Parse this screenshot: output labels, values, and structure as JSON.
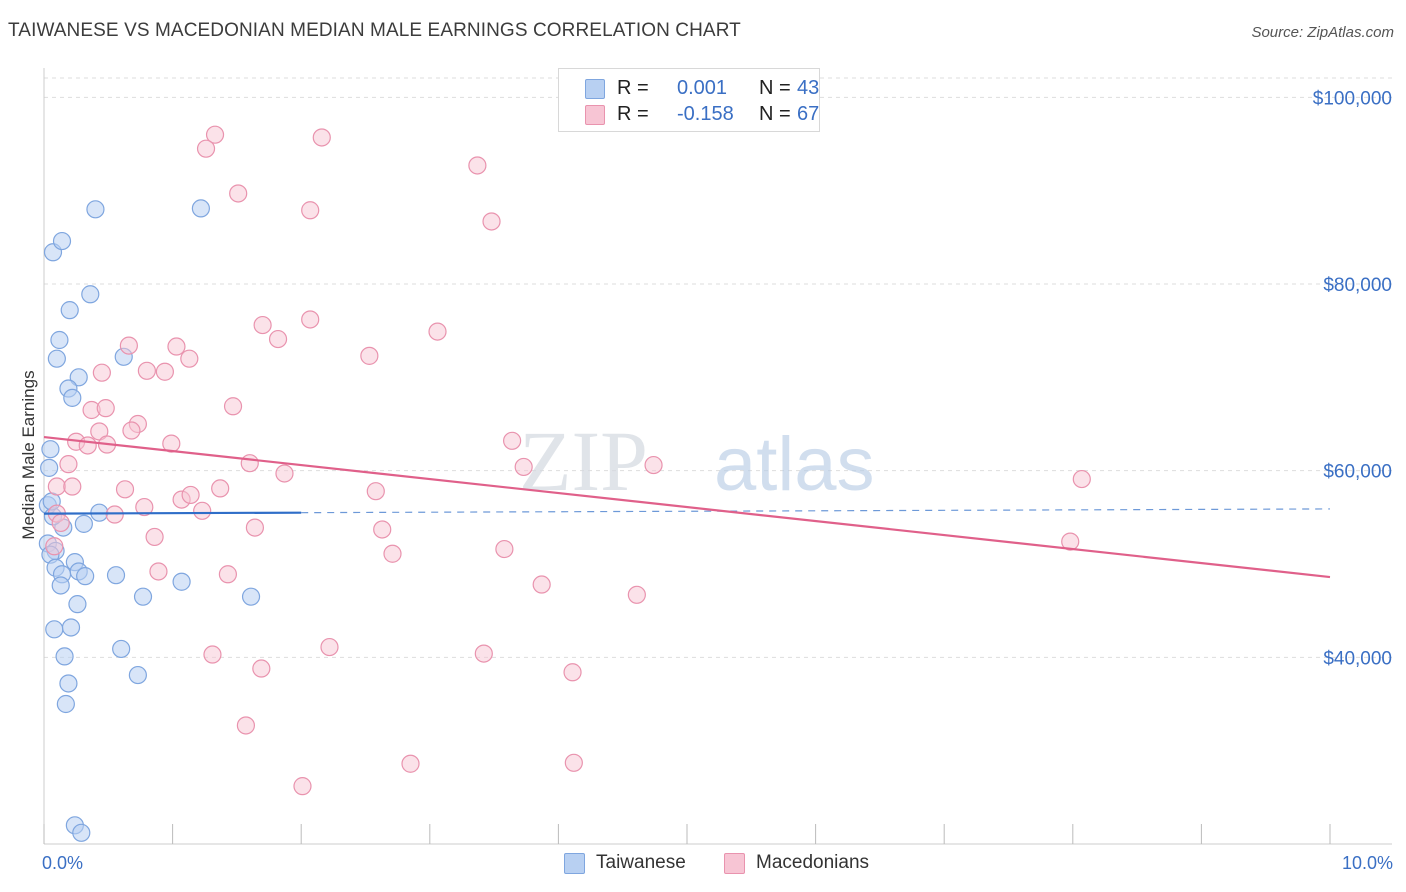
{
  "title": "TAIWANESE VS MACEDONIAN MEDIAN MALE EARNINGS CORRELATION CHART",
  "source": "Source: ZipAtlas.com",
  "watermark": {
    "zip": "ZIP",
    "atlas": "atlas"
  },
  "legend": {
    "series": [
      {
        "name": "Taiwanese",
        "r_label": "R =",
        "r_value": "0.001",
        "n_label": "N =",
        "n_value": "43"
      },
      {
        "name": "Macedonians",
        "r_label": "R =",
        "r_value": "-0.158",
        "n_label": "N =",
        "n_value": "67"
      }
    ]
  },
  "colors": {
    "taiwanese_fill": "#b8d0f2",
    "taiwanese_stroke": "#7fa6df",
    "taiwanese_line": "#2f6ec8",
    "macedonian_fill": "#f7c5d4",
    "macedonian_stroke": "#e993ae",
    "macedonian_line": "#e0608a",
    "axis_label": "#3a6fc4",
    "grid": "#dddddd"
  },
  "chart_data": {
    "type": "scatter",
    "title": "TAIWANESE VS MACEDONIAN MEDIAN MALE EARNINGS CORRELATION CHART",
    "xlabel": "",
    "ylabel": "Median Male Earnings",
    "xlim": [
      0,
      10
    ],
    "ylim": [
      20000,
      104000
    ],
    "x_tick_labels": [
      "0.0%",
      "10.0%"
    ],
    "y_ticks": [
      40000,
      60000,
      80000,
      100000
    ],
    "y_tick_labels": [
      "$40,000",
      "$60,000",
      "$80,000",
      "$100,000"
    ],
    "grid": true,
    "series": [
      {
        "name": "Taiwanese",
        "trend": {
          "x": [
            0.0,
            2.0
          ],
          "y": [
            55400,
            55500
          ],
          "dashed_extension_to_x": 10.0
        },
        "points": [
          [
            0.07,
            83400
          ],
          [
            0.14,
            84600
          ],
          [
            0.4,
            88000
          ],
          [
            0.2,
            77200
          ],
          [
            0.36,
            78900
          ],
          [
            0.12,
            74000
          ],
          [
            0.1,
            72000
          ],
          [
            0.62,
            72200
          ],
          [
            0.27,
            70000
          ],
          [
            0.19,
            68800
          ],
          [
            0.22,
            67800
          ],
          [
            0.05,
            62300
          ],
          [
            0.04,
            60300
          ],
          [
            0.03,
            56300
          ],
          [
            0.43,
            55500
          ],
          [
            0.31,
            54300
          ],
          [
            0.15,
            53900
          ],
          [
            0.03,
            52200
          ],
          [
            0.09,
            51400
          ],
          [
            0.05,
            51000
          ],
          [
            0.24,
            50200
          ],
          [
            0.09,
            49600
          ],
          [
            0.27,
            49200
          ],
          [
            0.14,
            48900
          ],
          [
            0.32,
            48700
          ],
          [
            0.56,
            48800
          ],
          [
            1.07,
            48100
          ],
          [
            0.13,
            47700
          ],
          [
            0.77,
            46500
          ],
          [
            1.61,
            46500
          ],
          [
            0.26,
            45700
          ],
          [
            0.08,
            43000
          ],
          [
            0.21,
            43200
          ],
          [
            0.16,
            40100
          ],
          [
            0.6,
            40900
          ],
          [
            0.73,
            38100
          ],
          [
            0.19,
            37200
          ],
          [
            0.17,
            35000
          ],
          [
            1.22,
            88100
          ],
          [
            0.24,
            22000
          ],
          [
            0.29,
            21200
          ],
          [
            0.07,
            55100
          ],
          [
            0.06,
            56700
          ]
        ]
      },
      {
        "name": "Macedonians",
        "trend": {
          "x": [
            0.0,
            10.0
          ],
          "y": [
            63600,
            48600
          ]
        },
        "points": [
          [
            1.33,
            96000
          ],
          [
            1.26,
            94500
          ],
          [
            2.16,
            95700
          ],
          [
            3.37,
            92700
          ],
          [
            1.51,
            89700
          ],
          [
            2.07,
            87900
          ],
          [
            3.48,
            86700
          ],
          [
            1.7,
            75600
          ],
          [
            2.07,
            76200
          ],
          [
            3.06,
            74900
          ],
          [
            1.82,
            74100
          ],
          [
            0.66,
            73400
          ],
          [
            1.03,
            73300
          ],
          [
            1.13,
            72000
          ],
          [
            2.53,
            72300
          ],
          [
            0.45,
            70500
          ],
          [
            0.8,
            70700
          ],
          [
            0.94,
            70600
          ],
          [
            0.37,
            66500
          ],
          [
            0.48,
            66700
          ],
          [
            1.47,
            66900
          ],
          [
            0.73,
            65000
          ],
          [
            0.68,
            64300
          ],
          [
            0.43,
            64200
          ],
          [
            0.25,
            63100
          ],
          [
            0.34,
            62700
          ],
          [
            0.49,
            62800
          ],
          [
            0.99,
            62900
          ],
          [
            3.64,
            63200
          ],
          [
            0.19,
            60700
          ],
          [
            1.6,
            60800
          ],
          [
            3.73,
            60400
          ],
          [
            4.74,
            60600
          ],
          [
            1.87,
            59700
          ],
          [
            0.1,
            58300
          ],
          [
            0.22,
            58300
          ],
          [
            0.63,
            58000
          ],
          [
            1.37,
            58100
          ],
          [
            2.58,
            57800
          ],
          [
            1.07,
            56900
          ],
          [
            1.14,
            57400
          ],
          [
            0.78,
            56100
          ],
          [
            1.23,
            55700
          ],
          [
            0.1,
            55400
          ],
          [
            0.55,
            55300
          ],
          [
            0.13,
            54400
          ],
          [
            1.64,
            53900
          ],
          [
            2.63,
            53700
          ],
          [
            0.86,
            52900
          ],
          [
            0.08,
            51900
          ],
          [
            3.58,
            51600
          ],
          [
            2.71,
            51100
          ],
          [
            7.98,
            52400
          ],
          [
            8.07,
            59100
          ],
          [
            0.89,
            49200
          ],
          [
            1.43,
            48900
          ],
          [
            3.87,
            47800
          ],
          [
            4.61,
            46700
          ],
          [
            1.31,
            40300
          ],
          [
            2.22,
            41100
          ],
          [
            3.42,
            40400
          ],
          [
            1.69,
            38800
          ],
          [
            4.11,
            38400
          ],
          [
            1.57,
            32700
          ],
          [
            2.85,
            28600
          ],
          [
            4.12,
            28700
          ],
          [
            2.01,
            26200
          ]
        ]
      }
    ]
  }
}
